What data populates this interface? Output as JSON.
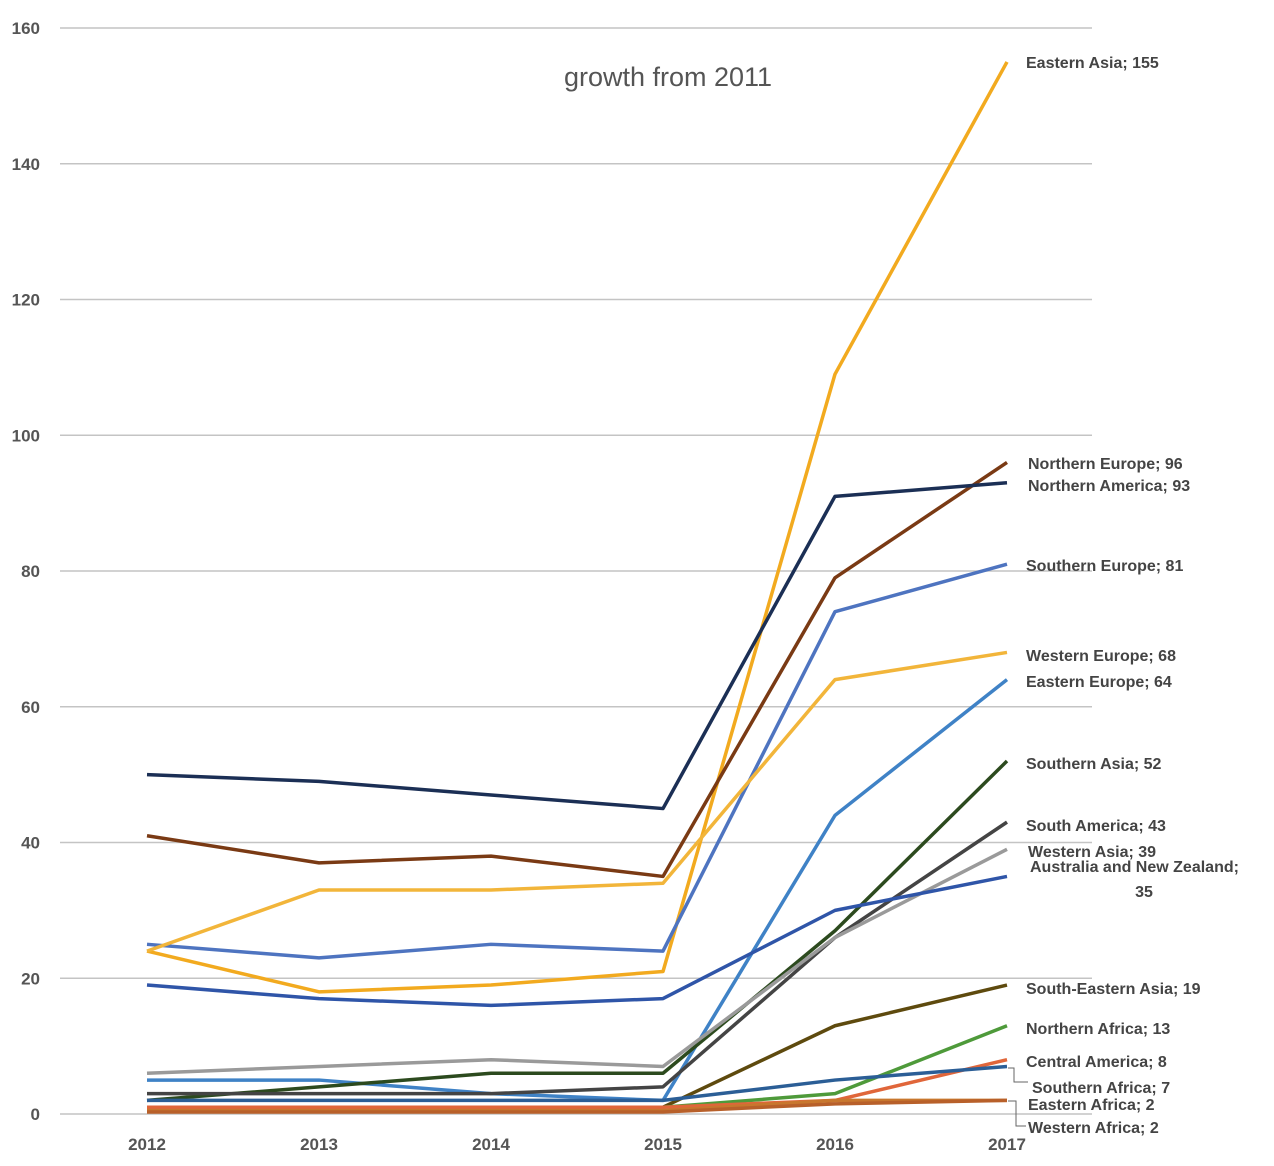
{
  "chart_data": {
    "type": "line",
    "title": "growth from 2011",
    "x": [
      "2012",
      "2013",
      "2014",
      "2015",
      "2016",
      "2017"
    ],
    "ylim": [
      0,
      160
    ],
    "yticks": [
      0,
      20,
      40,
      60,
      80,
      100,
      120,
      140,
      160
    ],
    "grid": true,
    "legend": "none",
    "series": [
      {
        "name": "Eastern Asia",
        "color": "#F2AA1F",
        "values": [
          24,
          18,
          19,
          21,
          109,
          155
        ],
        "label": "Eastern Asia; 155"
      },
      {
        "name": "Northern Europe",
        "color": "#7A3A14",
        "values": [
          41,
          37,
          38,
          35,
          79,
          96
        ],
        "label": "Northern Europe; 96"
      },
      {
        "name": "Northern America",
        "color": "#1B2F55",
        "values": [
          50,
          49,
          47,
          45,
          91,
          93
        ],
        "label": "Northern America; 93"
      },
      {
        "name": "Southern Europe",
        "color": "#4E74C0",
        "values": [
          25,
          23,
          25,
          24,
          74,
          81
        ],
        "label": "Southern Europe; 81"
      },
      {
        "name": "Western Europe",
        "color": "#F2B53A",
        "values": [
          24,
          33,
          33,
          34,
          64,
          68
        ],
        "label": "Western Europe; 68"
      },
      {
        "name": "Eastern Europe",
        "color": "#3F82C6",
        "values": [
          5,
          5,
          3,
          2,
          44,
          64
        ],
        "label": "Eastern Europe; 64"
      },
      {
        "name": "Southern Asia",
        "color": "#2C4A1E",
        "values": [
          2,
          4,
          6,
          6,
          27,
          52
        ],
        "label": "Southern Asia; 52"
      },
      {
        "name": "South America",
        "color": "#444444",
        "values": [
          3,
          3,
          3,
          4,
          26,
          43
        ],
        "label": "South America; 43"
      },
      {
        "name": "Western Asia",
        "color": "#9A9A9A",
        "values": [
          6,
          7,
          8,
          7,
          26,
          39
        ],
        "label": "Western Asia; 39"
      },
      {
        "name": "Australia and New Zealand",
        "color": "#2F55A8",
        "values": [
          19,
          17,
          16,
          17,
          30,
          35
        ],
        "label": "Australia and New Zealand;",
        "label2": "35"
      },
      {
        "name": "South-Eastern Asia",
        "color": "#5E4A0E",
        "values": [
          1,
          1,
          1,
          1,
          13,
          19
        ],
        "label": "South-Eastern Asia; 19"
      },
      {
        "name": "Northern Africa",
        "color": "#4E9A3A",
        "values": [
          1,
          1,
          1,
          1,
          3,
          13
        ],
        "label": "Northern Africa; 13"
      },
      {
        "name": "Central America",
        "color": "#E0663A",
        "values": [
          1,
          1,
          1,
          1,
          2,
          8
        ],
        "label": "Central America; 8"
      },
      {
        "name": "Southern Africa",
        "color": "#2B5E96",
        "values": [
          2,
          2,
          2,
          2,
          5,
          7
        ],
        "label": "Southern Africa; 7"
      },
      {
        "name": "Eastern Africa",
        "color": "#C8772E",
        "values": [
          0.5,
          0.5,
          0.5,
          0.5,
          2,
          2
        ],
        "label": "Eastern Africa; 2"
      },
      {
        "name": "Western Africa",
        "color": "#B8602A",
        "values": [
          0.3,
          0.3,
          0.3,
          0.3,
          1.5,
          2
        ],
        "label": "Western Africa; 2"
      }
    ]
  }
}
